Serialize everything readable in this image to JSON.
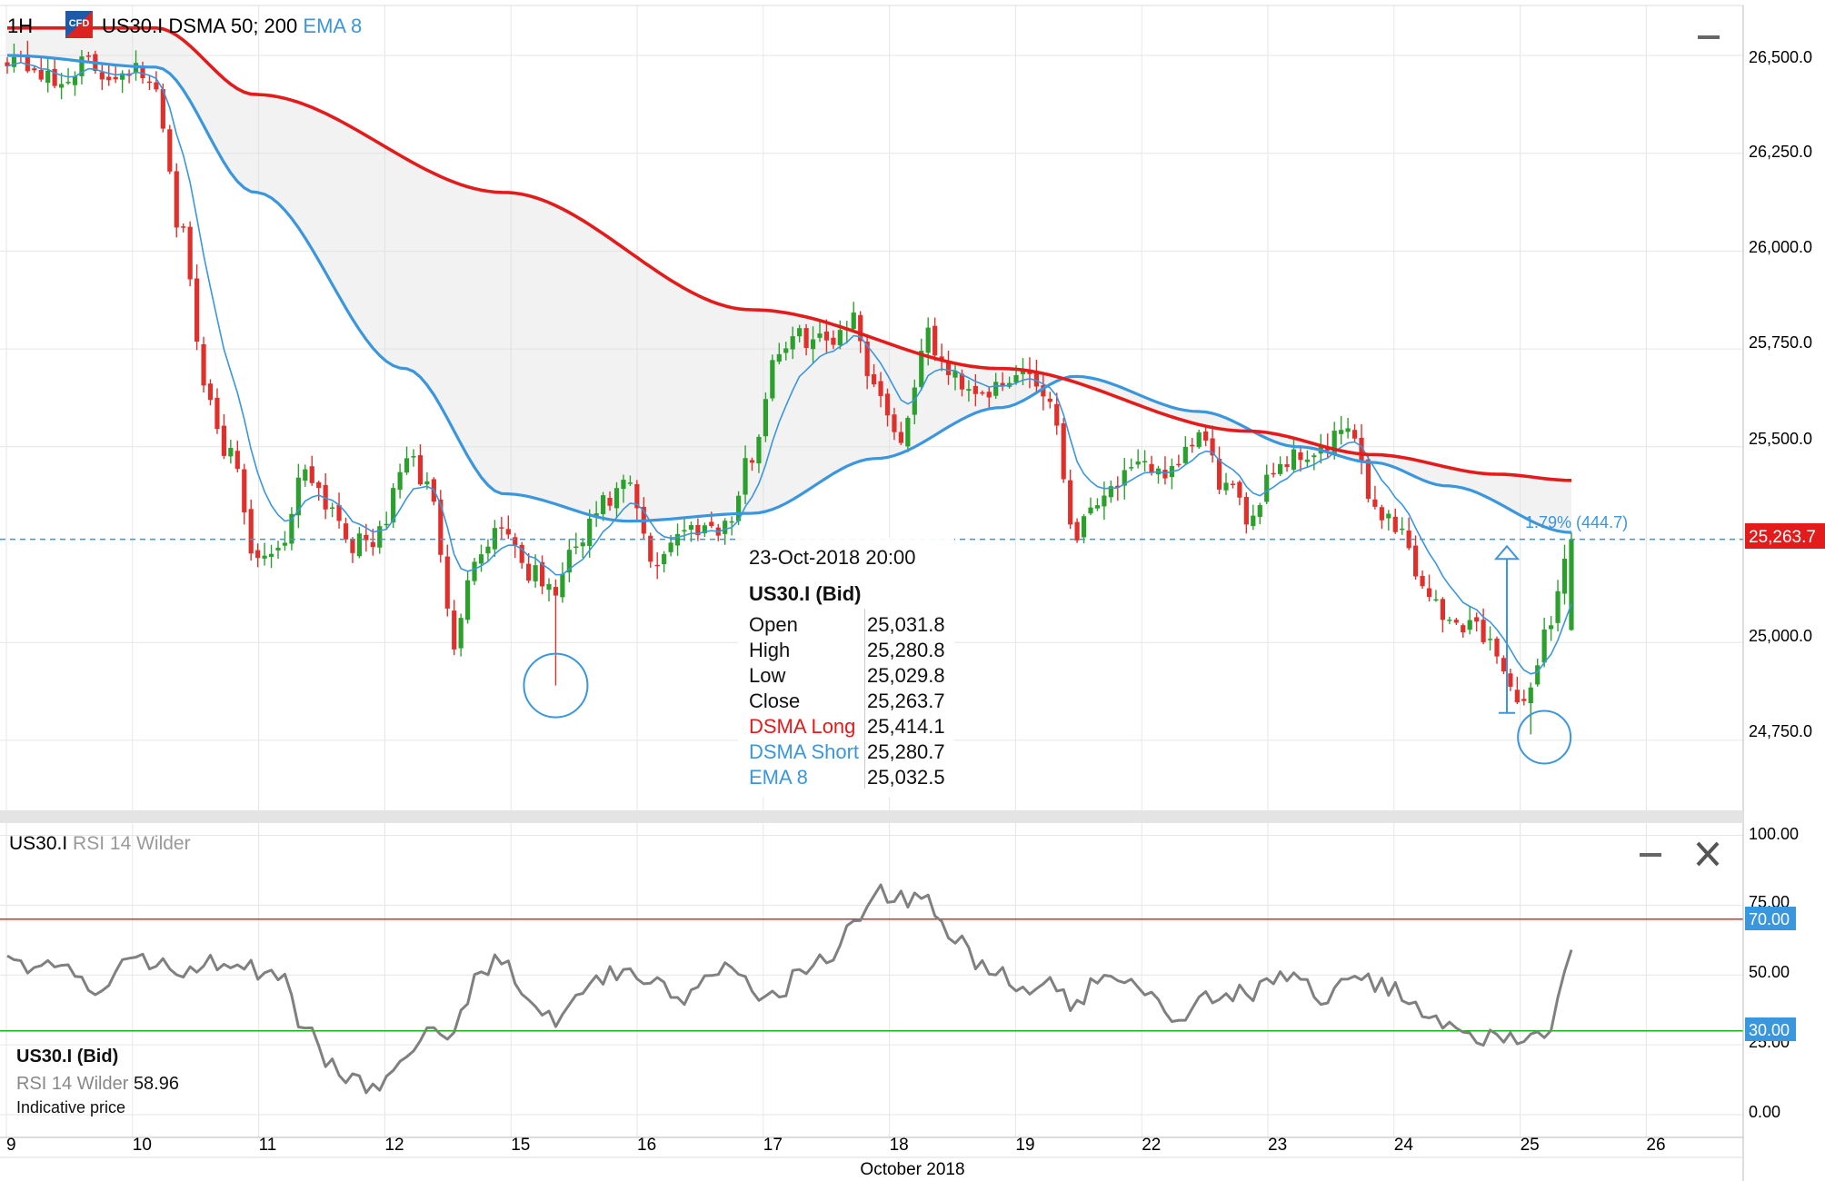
{
  "header": {
    "timeframe": "1H",
    "badge": "CFD",
    "symbol": "US30.I",
    "dsma_label": "DSMA 50; 200",
    "ema_label": "EMA 8"
  },
  "colors": {
    "up": "#2ca02c",
    "down": "#e0302c",
    "dsma_long": "#e31b1b",
    "dsma_short": "#3a96dd",
    "ema8": "#3a96dd",
    "rsi": "#808080",
    "rsi_overbought": "#d03030",
    "rsi_oversold": "#18b018",
    "last_price": "#e31b1b"
  },
  "price_axis": {
    "ticks": [
      "26,500.0",
      "26,250.0",
      "26,000.0",
      "25,750.0",
      "25,500.0",
      "25,000.0",
      "24,750.0"
    ],
    "last_price_label": "25,263.7",
    "measure_label": "1.79% (444.7)"
  },
  "tooltip": {
    "datetime": "23-Oct-2018 20:00",
    "symbol": "US30.I (Bid)",
    "rows": [
      {
        "k": "Open",
        "v": "25,031.8",
        "color": "#111"
      },
      {
        "k": "High",
        "v": "25,280.8",
        "color": "#111"
      },
      {
        "k": "Low",
        "v": "25,029.8",
        "color": "#111"
      },
      {
        "k": "Close",
        "v": "25,263.7",
        "color": "#111"
      },
      {
        "k": "DSMA Long",
        "v": "25,414.1",
        "color": "#e31b1b"
      },
      {
        "k": "DSMA Short",
        "v": "25,280.7",
        "color": "#3a96dd"
      },
      {
        "k": "EMA 8",
        "v": "25,032.5",
        "color": "#3a96dd"
      }
    ]
  },
  "rsi_panel": {
    "symbol": "US30.I",
    "indicator": "RSI 14 Wilder",
    "axis_ticks": [
      "100.00",
      "75.00",
      "50.00",
      "25.00",
      "0.00"
    ],
    "overbought_label": "70.00",
    "oversold_label": "30.00",
    "legend_symbol": "US30.I (Bid)",
    "legend_indicator": "RSI 14 Wilder",
    "legend_value": "58.96",
    "legend_note": "Indicative price"
  },
  "x_axis": {
    "day_labels": [
      "9",
      "10",
      "11",
      "12",
      "15",
      "16",
      "17",
      "18",
      "19",
      "22",
      "23",
      "24",
      "25",
      "26"
    ],
    "month_label": "October 2018"
  },
  "chart_data": [
    {
      "type": "candlestick",
      "title": "US30.I DSMA 50; 200 EMA 8",
      "timeframe": "1H",
      "ylim": [
        24600,
        26600
      ],
      "days": [
        "9",
        "10",
        "11",
        "12",
        "15",
        "16",
        "17",
        "18",
        "19",
        "22",
        "23",
        "24",
        "25",
        "26"
      ],
      "waypoints_close": [
        [
          0,
          26500
        ],
        [
          1,
          26470
        ],
        [
          2,
          26420
        ],
        [
          3,
          26480
        ],
        [
          4,
          26450
        ],
        [
          5,
          26470
        ],
        [
          6,
          26400
        ],
        [
          7,
          26050
        ],
        [
          8,
          25650
        ],
        [
          9,
          25470
        ],
        [
          10,
          25200
        ],
        [
          11,
          25250
        ],
        [
          12,
          25450
        ],
        [
          13,
          25350
        ],
        [
          14,
          25250
        ],
        [
          15,
          25270
        ],
        [
          16,
          25470
        ],
        [
          17,
          25400
        ],
        [
          18,
          25000
        ],
        [
          19,
          25250
        ],
        [
          20,
          25300
        ],
        [
          21,
          25180
        ],
        [
          22,
          25130
        ],
        [
          23,
          25250
        ],
        [
          24,
          25350
        ],
        [
          25,
          25400
        ],
        [
          26,
          25200
        ],
        [
          27,
          25280
        ],
        [
          28,
          25300
        ],
        [
          29,
          25300
        ],
        [
          30,
          25480
        ],
        [
          31,
          25750
        ],
        [
          32,
          25780
        ],
        [
          33,
          25770
        ],
        [
          34,
          25830
        ],
        [
          35,
          25650
        ],
        [
          36,
          25520
        ],
        [
          37,
          25780
        ],
        [
          38,
          25680
        ],
        [
          39,
          25650
        ],
        [
          40,
          25640
        ],
        [
          41,
          25700
        ],
        [
          42,
          25620
        ],
        [
          43,
          25280
        ],
        [
          44,
          25380
        ],
        [
          45,
          25420
        ],
        [
          46,
          25450
        ],
        [
          47,
          25430
        ],
        [
          48,
          25530
        ],
        [
          49,
          25400
        ],
        [
          50,
          25320
        ],
        [
          51,
          25450
        ],
        [
          52,
          25480
        ],
        [
          53,
          25490
        ],
        [
          54,
          25550
        ],
        [
          55,
          25350
        ],
        [
          56,
          25300
        ],
        [
          57,
          25150
        ],
        [
          58,
          25050
        ],
        [
          59,
          25050
        ],
        [
          60,
          24980
        ],
        [
          61,
          24820
        ],
        [
          62,
          25030
        ],
        [
          63,
          25264
        ]
      ],
      "series": [
        {
          "name": "DSMA Long",
          "waypoints": [
            [
              0,
              26570
            ],
            [
              6,
              26570
            ],
            [
              10,
              26400
            ],
            [
              20,
              26150
            ],
            [
              30,
              25850
            ],
            [
              40,
              25700
            ],
            [
              50,
              25540
            ],
            [
              55,
              25480
            ],
            [
              60,
              25430
            ],
            [
              63,
              25414
            ]
          ]
        },
        {
          "name": "DSMA Short",
          "waypoints": [
            [
              0,
              26500
            ],
            [
              6,
              26470
            ],
            [
              10,
              26150
            ],
            [
              16,
              25700
            ],
            [
              20,
              25380
            ],
            [
              25,
              25310
            ],
            [
              30,
              25330
            ],
            [
              35,
              25470
            ],
            [
              40,
              25600
            ],
            [
              43,
              25680
            ],
            [
              48,
              25590
            ],
            [
              52,
              25500
            ],
            [
              55,
              25460
            ],
            [
              58,
              25400
            ],
            [
              63,
              25281
            ]
          ]
        },
        {
          "name": "EMA 8",
          "waypoints": []
        }
      ],
      "last_close": 25263.7,
      "measure": {
        "from": 24820,
        "to": 25264.5,
        "label": "1.79% (444.7)"
      }
    },
    {
      "type": "line",
      "title": "US30.I RSI 14 Wilder",
      "ylim": [
        0,
        100
      ],
      "levels": [
        70,
        30
      ],
      "series": [
        {
          "name": "RSI 14 Wilder",
          "values": [
            57,
            53,
            55,
            48,
            44,
            58,
            55,
            50,
            56,
            54,
            52,
            50,
            30,
            18,
            13,
            9,
            20,
            28,
            30,
            52,
            56,
            42,
            34,
            45,
            50,
            53,
            48,
            40,
            48,
            52,
            45,
            41,
            52,
            56,
            70,
            80,
            77,
            78,
            65,
            55,
            50,
            45,
            46,
            39,
            48,
            50,
            46,
            34,
            41,
            44,
            43,
            47,
            52,
            41,
            46,
            47,
            44,
            37,
            31,
            29,
            27,
            25,
            28,
            59
          ]
        }
      ]
    }
  ]
}
